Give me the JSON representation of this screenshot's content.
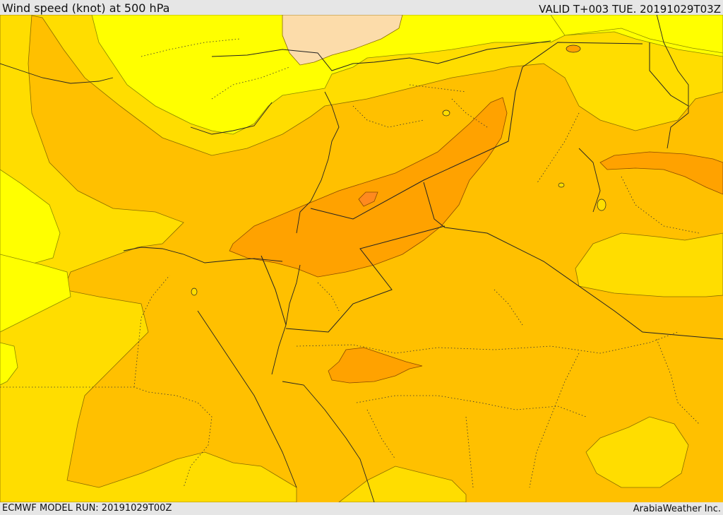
{
  "header": {
    "title": "Wind speed (knot) at 500 hPa",
    "valid": "VALID T+003 TUE. 20191029T03Z"
  },
  "footer": {
    "model_run": "ECMWF MODEL RUN: 20191029T00Z",
    "credit": "ArabiaWeather Inc."
  },
  "legend_colors": {
    "bright_yellow": "#ffff00",
    "gold": "#ffdd00",
    "amber": "#ffc000",
    "orange": "#ffa200",
    "dark_orange": "#ff8a1e",
    "peach": "#fcdcaa"
  }
}
